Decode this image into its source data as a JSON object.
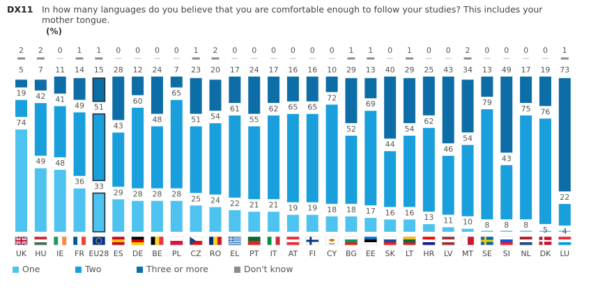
{
  "header": {
    "code": "DX11",
    "question": "In how many languages do you believe that you are comfortable enough to follow your studies? This includes your mother tongue.",
    "unit": "(%)"
  },
  "colors": {
    "one": "#4ec3f0",
    "two": "#189fdc",
    "three_or_more": "#0d6da6",
    "dont_know": "#8c8c8c",
    "highlight_border": "#1f2f3a"
  },
  "legend": [
    {
      "label": "One",
      "color": "#4ec3f0"
    },
    {
      "label": "Two",
      "color": "#189fdc"
    },
    {
      "label": "Three or more",
      "color": "#0d6da6"
    },
    {
      "label": "Don't know",
      "color": "#8c8c8c"
    }
  ],
  "chart_data": {
    "type": "bar",
    "stacked": true,
    "categories": [
      "UK",
      "HU",
      "IE",
      "FR",
      "EU28",
      "ES",
      "DE",
      "BE",
      "PL",
      "CZ",
      "RO",
      "EL",
      "PT",
      "IT",
      "AT",
      "FI",
      "CY",
      "BG",
      "EE",
      "SK",
      "LT",
      "HR",
      "LV",
      "MT",
      "SE",
      "SI",
      "NL",
      "DK",
      "LU"
    ],
    "highlight": "EU28",
    "series": [
      {
        "name": "One",
        "values": [
          74,
          49,
          48,
          36,
          33,
          29,
          28,
          28,
          28,
          25,
          24,
          22,
          21,
          21,
          19,
          19,
          18,
          18,
          17,
          16,
          16,
          13,
          11,
          10,
          8,
          8,
          8,
          5,
          4
        ]
      },
      {
        "name": "Two",
        "values": [
          19,
          42,
          41,
          49,
          51,
          43,
          60,
          48,
          65,
          51,
          54,
          61,
          55,
          62,
          65,
          65,
          72,
          52,
          69,
          44,
          54,
          62,
          46,
          54,
          79,
          43,
          75,
          76,
          22
        ]
      },
      {
        "name": "Three or more",
        "values": [
          5,
          7,
          11,
          14,
          15,
          28,
          12,
          24,
          7,
          23,
          20,
          17,
          24,
          17,
          16,
          16,
          10,
          29,
          13,
          40,
          29,
          25,
          43,
          34,
          13,
          49,
          17,
          19,
          73
        ]
      },
      {
        "name": "Don't know",
        "values": [
          2,
          2,
          0,
          1,
          1,
          0,
          0,
          0,
          0,
          1,
          2,
          0,
          0,
          0,
          0,
          0,
          0,
          1,
          1,
          0,
          1,
          0,
          0,
          2,
          0,
          0,
          0,
          0,
          1
        ]
      }
    ],
    "ylim": [
      0,
      100
    ],
    "legend_position": "bottom-left",
    "grid": false
  },
  "flags": {
    "UK": "uk",
    "HU": [
      "#ce2939",
      "#ffffff",
      "#477050"
    ],
    "IE": [
      "#169b62",
      "#ffffff",
      "#ff883e"
    ],
    "FR": [
      "#0055a4",
      "#ffffff",
      "#ef4135"
    ],
    "EU28": "eu",
    "ES": [
      "#c60b1e",
      "#ffc400",
      "#c60b1e"
    ],
    "DE": [
      "#000000",
      "#dd0000",
      "#ffce00"
    ],
    "BE": [
      "#000000",
      "#fdda24",
      "#ef3340"
    ],
    "PL": [
      "#ffffff",
      "#dc143c"
    ],
    "CZ": "cz",
    "RO": [
      "#002b7f",
      "#fcd116",
      "#ce1126"
    ],
    "EL": "gr",
    "PT": [
      "#046a38",
      "#da291c"
    ],
    "IT": [
      "#009246",
      "#ffffff",
      "#ce2b37"
    ],
    "AT": [
      "#ed2939",
      "#ffffff",
      "#ed2939"
    ],
    "FI": "fi",
    "CY": "cy",
    "BG": [
      "#ffffff",
      "#00966e",
      "#d62612"
    ],
    "EE": [
      "#0072ce",
      "#000000",
      "#ffffff"
    ],
    "SK": [
      "#ffffff",
      "#0b4ea2",
      "#ee1c25"
    ],
    "LT": [
      "#fdb913",
      "#006a44",
      "#c1272d"
    ],
    "HR": [
      "#ff0000",
      "#ffffff",
      "#171796"
    ],
    "LV": [
      "#9e3039",
      "#ffffff",
      "#9e3039"
    ],
    "MT": [
      "#ffffff",
      "#cf142b"
    ],
    "SE": "se",
    "SI": [
      "#ffffff",
      "#005ce5",
      "#ed1c24"
    ],
    "NL": [
      "#ae1c28",
      "#ffffff",
      "#21468b"
    ],
    "DK": "dk",
    "LU": [
      "#ed2939",
      "#ffffff",
      "#00a1de"
    ]
  }
}
